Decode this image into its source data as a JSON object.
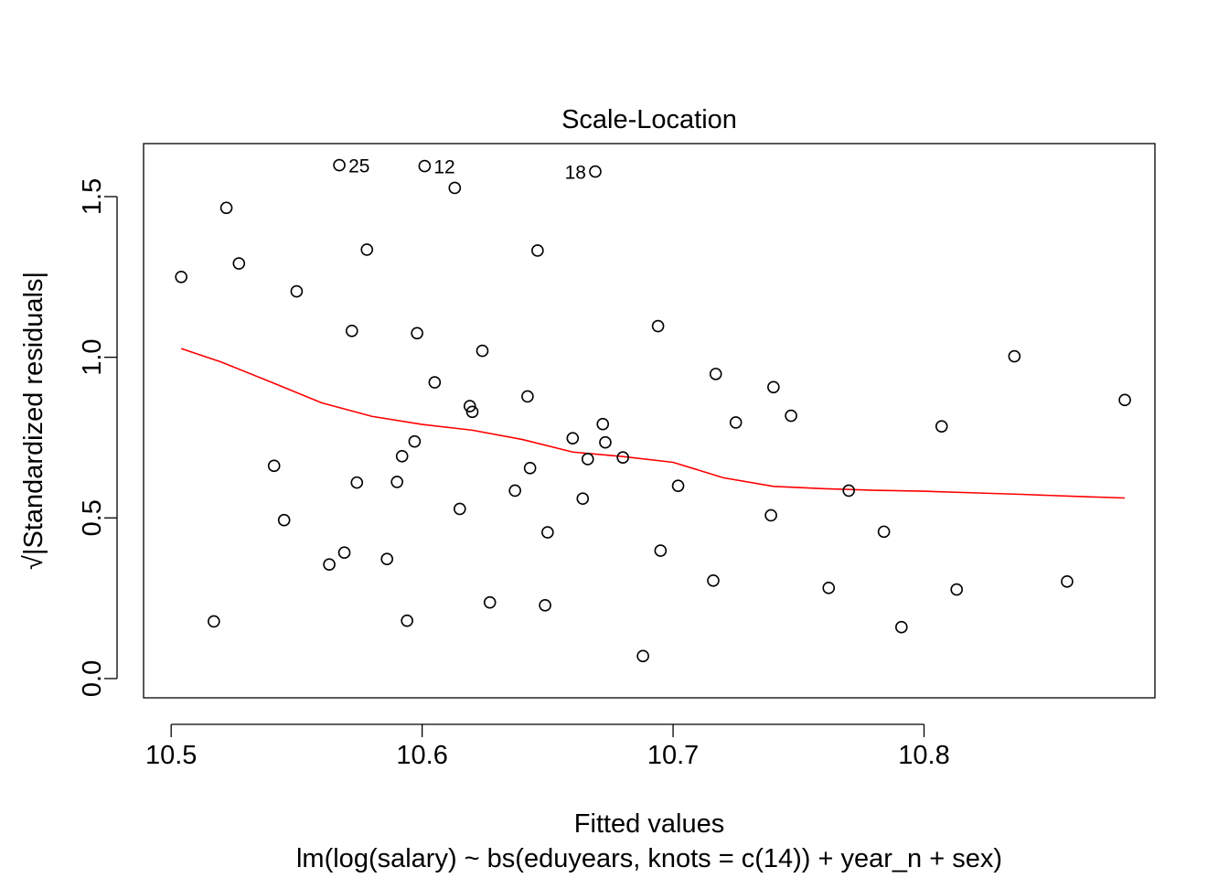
{
  "chart_data": {
    "type": "scatter",
    "title": "Scale-Location",
    "xlabel": "Fitted values",
    "ylabel": "√|Standardized residuals|",
    "subtitle": "lm(log(salary) ~ bs(eduyears, knots = c(14)) + year_n + sex)",
    "xlim": [
      10.489,
      10.892
    ],
    "ylim": [
      -0.06,
      1.665
    ],
    "x_ticks": [
      10.5,
      10.6,
      10.7,
      10.8
    ],
    "x_tick_labels": [
      "10.5",
      "10.6",
      "10.7",
      "10.8"
    ],
    "y_ticks": [
      0.0,
      0.5,
      1.0,
      1.5
    ],
    "y_tick_labels": [
      "0.0",
      "0.5",
      "1.0",
      "1.5"
    ],
    "grid": false,
    "legend": "none",
    "colors": {
      "points": "#000000",
      "smooth": "#ff0000",
      "axes": "#000000"
    },
    "points": [
      {
        "x": 10.504,
        "y": 1.25
      },
      {
        "x": 10.517,
        "y": 0.178
      },
      {
        "x": 10.522,
        "y": 1.465
      },
      {
        "x": 10.527,
        "y": 1.292
      },
      {
        "x": 10.541,
        "y": 0.662
      },
      {
        "x": 10.545,
        "y": 0.493
      },
      {
        "x": 10.55,
        "y": 1.205
      },
      {
        "x": 10.563,
        "y": 0.355
      },
      {
        "x": 10.567,
        "y": 1.598,
        "label": "25"
      },
      {
        "x": 10.569,
        "y": 0.392
      },
      {
        "x": 10.572,
        "y": 1.082
      },
      {
        "x": 10.574,
        "y": 0.61
      },
      {
        "x": 10.578,
        "y": 1.335
      },
      {
        "x": 10.586,
        "y": 0.372
      },
      {
        "x": 10.59,
        "y": 0.612
      },
      {
        "x": 10.592,
        "y": 0.692
      },
      {
        "x": 10.594,
        "y": 0.18
      },
      {
        "x": 10.597,
        "y": 0.738
      },
      {
        "x": 10.598,
        "y": 1.075
      },
      {
        "x": 10.601,
        "y": 1.595,
        "label": "12"
      },
      {
        "x": 10.605,
        "y": 0.922
      },
      {
        "x": 10.613,
        "y": 1.527
      },
      {
        "x": 10.615,
        "y": 0.528
      },
      {
        "x": 10.619,
        "y": 0.848
      },
      {
        "x": 10.62,
        "y": 0.83
      },
      {
        "x": 10.624,
        "y": 1.02
      },
      {
        "x": 10.627,
        "y": 0.237
      },
      {
        "x": 10.637,
        "y": 0.585
      },
      {
        "x": 10.642,
        "y": 0.878
      },
      {
        "x": 10.643,
        "y": 0.655
      },
      {
        "x": 10.646,
        "y": 1.332
      },
      {
        "x": 10.649,
        "y": 0.228
      },
      {
        "x": 10.65,
        "y": 0.455
      },
      {
        "x": 10.66,
        "y": 0.748
      },
      {
        "x": 10.664,
        "y": 0.56
      },
      {
        "x": 10.666,
        "y": 0.683
      },
      {
        "x": 10.669,
        "y": 1.578,
        "label": "18"
      },
      {
        "x": 10.672,
        "y": 0.792
      },
      {
        "x": 10.673,
        "y": 0.735
      },
      {
        "x": 10.68,
        "y": 0.688
      },
      {
        "x": 10.688,
        "y": 0.07
      },
      {
        "x": 10.694,
        "y": 1.097
      },
      {
        "x": 10.695,
        "y": 0.398
      },
      {
        "x": 10.702,
        "y": 0.6
      },
      {
        "x": 10.716,
        "y": 0.305
      },
      {
        "x": 10.717,
        "y": 0.948
      },
      {
        "x": 10.725,
        "y": 0.797
      },
      {
        "x": 10.739,
        "y": 0.508
      },
      {
        "x": 10.74,
        "y": 0.907
      },
      {
        "x": 10.747,
        "y": 0.818
      },
      {
        "x": 10.762,
        "y": 0.282
      },
      {
        "x": 10.77,
        "y": 0.585
      },
      {
        "x": 10.784,
        "y": 0.457
      },
      {
        "x": 10.791,
        "y": 0.16
      },
      {
        "x": 10.807,
        "y": 0.785
      },
      {
        "x": 10.813,
        "y": 0.277
      },
      {
        "x": 10.836,
        "y": 1.003
      },
      {
        "x": 10.857,
        "y": 0.302
      },
      {
        "x": 10.88,
        "y": 0.867
      }
    ],
    "smooth_line": {
      "x": [
        10.504,
        10.52,
        10.54,
        10.56,
        10.58,
        10.6,
        10.62,
        10.64,
        10.66,
        10.68,
        10.7,
        10.72,
        10.74,
        10.76,
        10.78,
        10.8,
        10.82,
        10.84,
        10.86,
        10.88
      ],
      "y": [
        1.027,
        0.985,
        0.922,
        0.858,
        0.816,
        0.791,
        0.773,
        0.744,
        0.705,
        0.691,
        0.673,
        0.625,
        0.598,
        0.591,
        0.586,
        0.583,
        0.578,
        0.573,
        0.567,
        0.562
      ]
    }
  }
}
